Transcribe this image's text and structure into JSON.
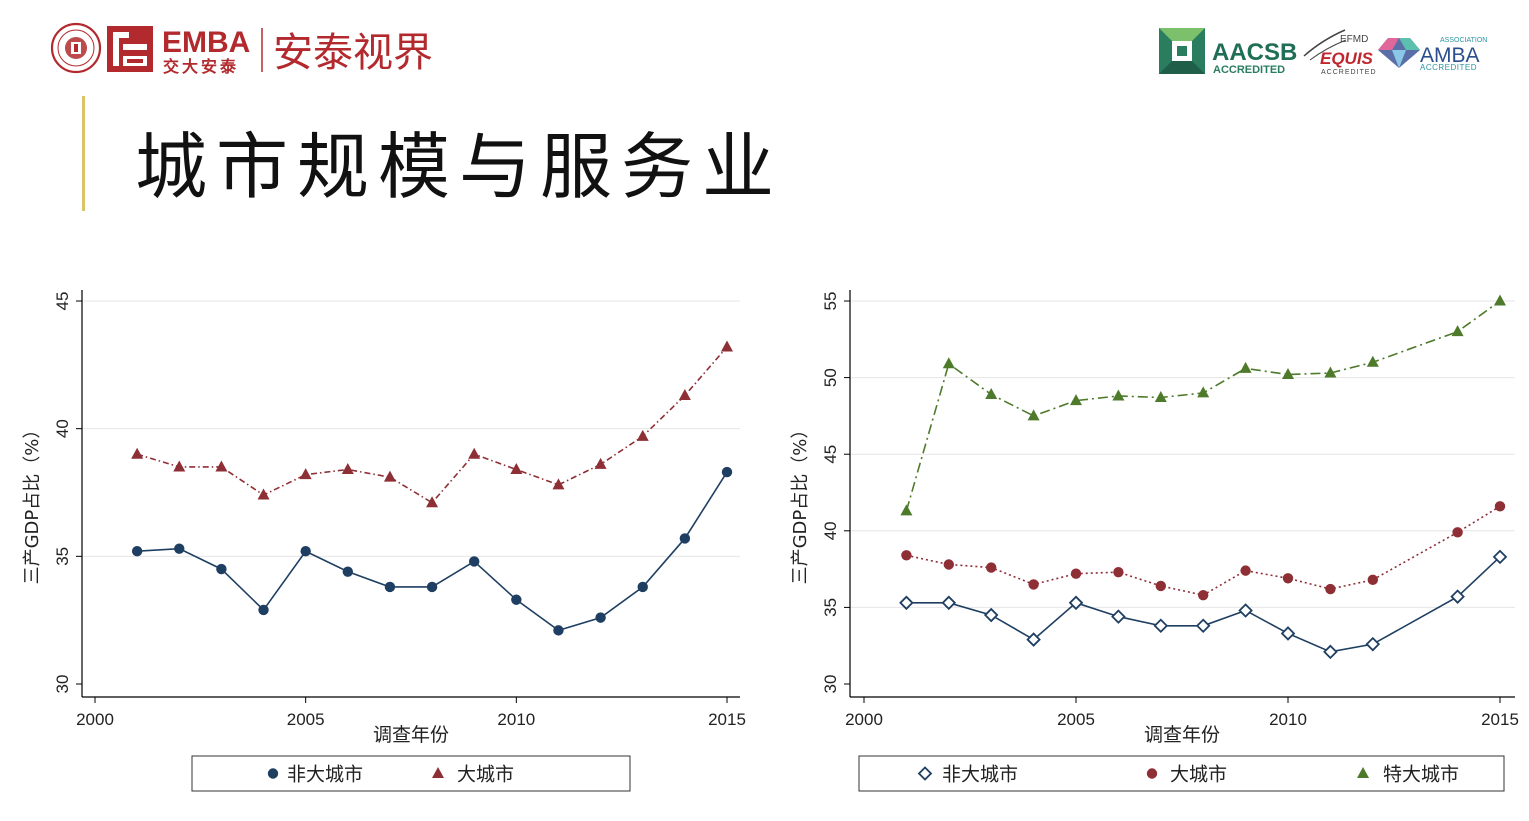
{
  "header": {
    "brand_main": "EMBA",
    "brand_sub": "交大安泰",
    "brand_slogan": "安泰视界",
    "accreditations": [
      {
        "name": "AACSB",
        "sub": "ACCREDITED"
      },
      {
        "name": "EQUIS",
        "top": "EFMD",
        "sub": "ACCREDITED"
      },
      {
        "name": "AMBA",
        "top": "ASSOCIATION",
        "sub": "ACCREDITED"
      }
    ]
  },
  "page": {
    "title": "城市规模与服务业"
  },
  "colors": {
    "navy": "#1f3f62",
    "maroon": "#8e2f36",
    "olive": "#4e7a2b",
    "grid": "#e6e6e6"
  },
  "chart_data": [
    {
      "type": "line",
      "title": "",
      "xlabel": "调查年份",
      "ylabel": "三产GDP占比（%）",
      "xlim": [
        2000,
        2015
      ],
      "ylim": [
        30,
        45
      ],
      "xticks": [
        2000,
        2005,
        2010,
        2015
      ],
      "yticks": [
        30,
        35,
        40,
        45
      ],
      "grid": true,
      "legend_position": "bottom",
      "x": [
        2001,
        2002,
        2003,
        2004,
        2005,
        2006,
        2007,
        2008,
        2009,
        2010,
        2011,
        2012,
        2013,
        2014,
        2015
      ],
      "series": [
        {
          "name": "非大城市",
          "color": "#1f3f62",
          "marker": "circle",
          "dash": "",
          "values": [
            35.2,
            35.3,
            34.5,
            32.9,
            35.2,
            34.4,
            33.8,
            33.8,
            34.8,
            33.3,
            32.1,
            32.6,
            33.8,
            35.7,
            38.3
          ]
        },
        {
          "name": "大城市",
          "color": "#8e2f36",
          "marker": "triangle",
          "dash": "6 3 1.5 3",
          "values": [
            39.0,
            38.5,
            38.5,
            37.4,
            38.2,
            38.4,
            38.1,
            37.1,
            39.0,
            38.4,
            37.8,
            38.6,
            39.7,
            41.3,
            43.2
          ]
        }
      ]
    },
    {
      "type": "line",
      "title": "",
      "xlabel": "调查年份",
      "ylabel": "三产GDP占比（%）",
      "xlim": [
        2000,
        2015
      ],
      "ylim": [
        30,
        55
      ],
      "xticks": [
        2000,
        2005,
        2010,
        2015
      ],
      "yticks": [
        30,
        35,
        40,
        45,
        50,
        55
      ],
      "grid": true,
      "legend_position": "bottom",
      "x": [
        2001,
        2002,
        2003,
        2004,
        2005,
        2006,
        2007,
        2008,
        2009,
        2010,
        2011,
        2012,
        2014,
        2015
      ],
      "series": [
        {
          "name": "非大城市",
          "color": "#1f3f62",
          "marker": "diamond",
          "dash": "",
          "values": [
            35.3,
            35.3,
            34.5,
            32.9,
            35.3,
            34.4,
            33.8,
            33.8,
            34.8,
            33.3,
            32.1,
            32.6,
            35.7,
            38.3
          ]
        },
        {
          "name": "大城市",
          "color": "#8e2f36",
          "marker": "circle",
          "dash": "2 3",
          "values": [
            38.4,
            37.8,
            37.6,
            36.5,
            37.2,
            37.3,
            36.4,
            35.8,
            37.4,
            36.9,
            36.2,
            36.8,
            39.9,
            41.6
          ]
        },
        {
          "name": "特大城市",
          "color": "#4e7a2b",
          "marker": "triangle",
          "dash": "10 4 2 4",
          "values": [
            41.3,
            50.9,
            48.9,
            47.5,
            48.5,
            48.8,
            48.7,
            49.0,
            50.6,
            50.2,
            50.3,
            51.0,
            53.0,
            55.0
          ]
        }
      ]
    }
  ]
}
